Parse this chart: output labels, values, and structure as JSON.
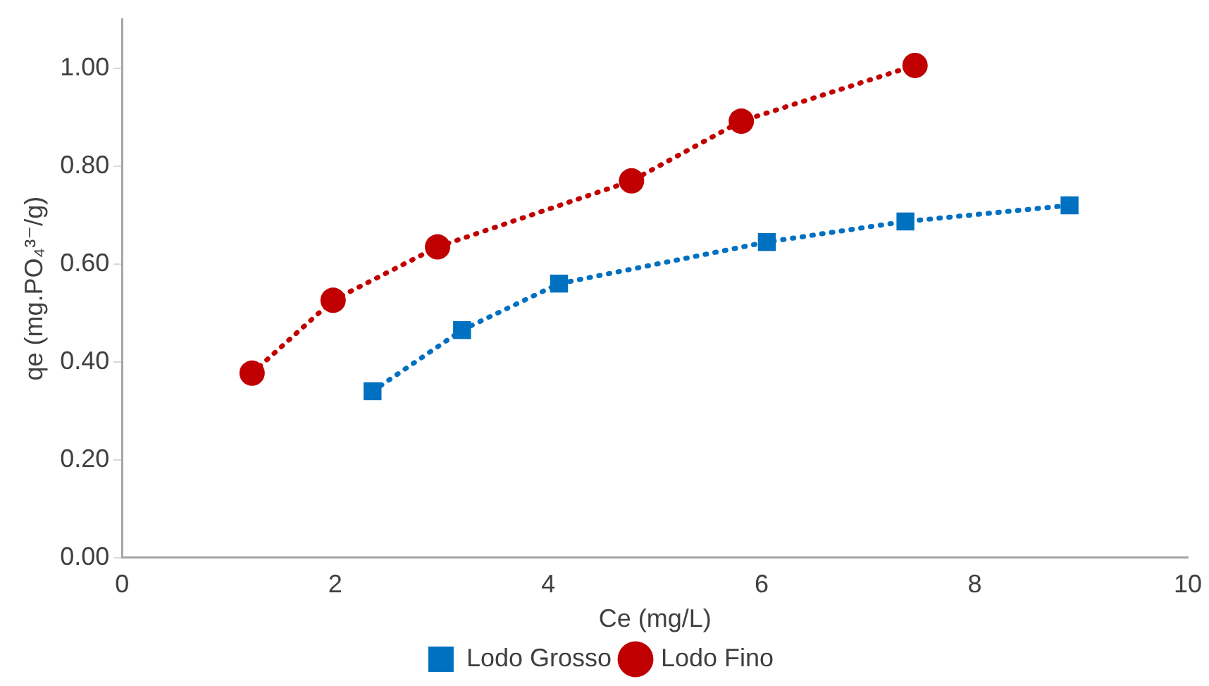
{
  "chart_data": {
    "type": "line",
    "xlabel": "Ce (mg/L)",
    "ylabel": "qe (mg.PO₄³⁻/g)",
    "xlim": [
      0,
      10
    ],
    "xticks": [
      0,
      2,
      4,
      6,
      8,
      10
    ],
    "ylim": [
      0,
      1.1
    ],
    "yticks": [
      {
        "value": 0,
        "label": "0.00"
      },
      {
        "value": 0.2,
        "label": "0.20"
      },
      {
        "value": 0.4,
        "label": "0.40"
      },
      {
        "value": 0.6,
        "label": "0.60"
      },
      {
        "value": 0.8,
        "label": "0.80"
      },
      {
        "value": 1,
        "label": "1.00"
      }
    ],
    "grid": false,
    "legend": "bottom",
    "line_style": "dotted",
    "series": [
      {
        "name": "Lodo Grosso",
        "color": "#0070c0",
        "marker": "square",
        "x": [
          2.35,
          3.19,
          4.1,
          6.05,
          7.35,
          8.89
        ],
        "values": [
          0.34,
          0.465,
          0.56,
          0.645,
          0.687,
          0.72
        ]
      },
      {
        "name": "Lodo Fino",
        "color": "#c00000",
        "marker": "circle",
        "x": [
          1.22,
          1.98,
          2.96,
          4.78,
          5.81,
          7.44
        ],
        "values": [
          0.377,
          0.526,
          0.635,
          0.77,
          0.892,
          1.006
        ]
      }
    ]
  }
}
